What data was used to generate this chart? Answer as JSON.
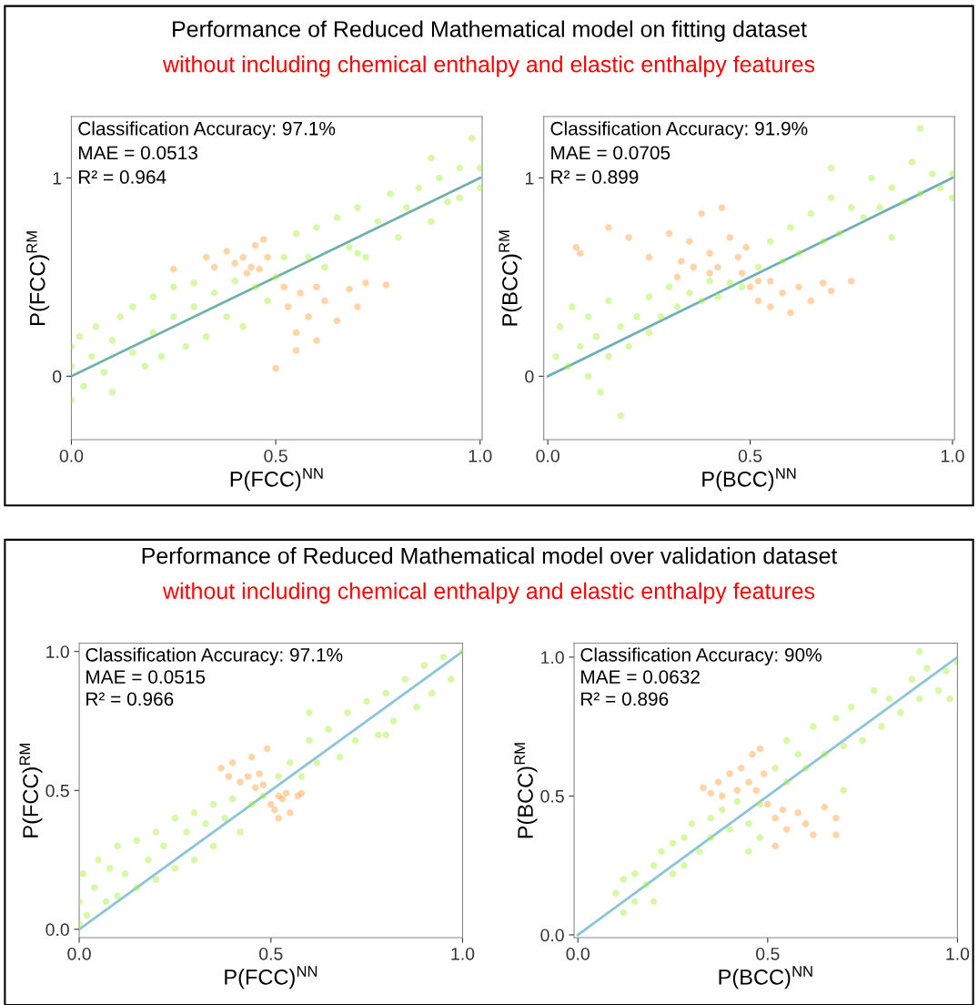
{
  "chart_data": [
    {
      "type": "scatter",
      "title": "Performance of Reduced Mathematical model on fitting dataset",
      "subtitle": "without including chemical enthalpy and elastic enthalpy features",
      "xlabel": "P(FCC)$^{NN}$",
      "ylabel": "P(FCC)$^{RM}$",
      "annotations": [
        "Classification Accuracy: 97.1%",
        "MAE = 0.0513",
        "R² = 0.964"
      ],
      "xlim": [
        0,
        1.005
      ],
      "ylim": [
        -0.32,
        1.31
      ],
      "xticks": [
        {
          "value": 0,
          "label": "0.0"
        },
        {
          "value": 0.5,
          "label": "0.5"
        },
        {
          "value": 1,
          "label": "1.0"
        }
      ],
      "yticks": [
        0,
        1
      ],
      "grid": false,
      "legend": false,
      "marker": "circle",
      "series": [
        {
          "color": "#a6f03c",
          "x": [
            0,
            0,
            0,
            0.02,
            0.03,
            0.05,
            0.06,
            0.08,
            0.1,
            0.1,
            0.12,
            0.15,
            0.15,
            0.18,
            0.2,
            0.2,
            0.22,
            0.25,
            0.25,
            0.28,
            0.3,
            0.3,
            0.33,
            0.35,
            0.38,
            0.4,
            0.42,
            0.45,
            0.48,
            0.5,
            0.52,
            0.55,
            0.58,
            0.6,
            0.62,
            0.65,
            0.68,
            0.7,
            0.72,
            0.75,
            0.78,
            0.8,
            0.82,
            0.85,
            0.88,
            0.9,
            0.92,
            0.95,
            0.95,
            0.98,
            1,
            1,
            0.88,
            0.7
          ],
          "values": [
            0.05,
            -0.12,
            0.15,
            0.2,
            -0.05,
            0.1,
            0.25,
            0.02,
            0.18,
            -0.08,
            0.3,
            0.12,
            0.35,
            0.05,
            0.22,
            0.4,
            0.1,
            0.3,
            0.45,
            0.15,
            0.35,
            0.47,
            0.2,
            0.42,
            0.3,
            0.48,
            0.25,
            0.45,
            0.38,
            0.5,
            0.6,
            0.72,
            0.6,
            0.75,
            0.55,
            0.8,
            0.65,
            0.85,
            0.6,
            0.78,
            0.92,
            0.7,
            0.85,
            0.95,
            0.78,
            1.0,
            0.88,
            1.05,
            0.9,
            1.2,
            1.05,
            0.95,
            1.1,
            0.62
          ]
        },
        {
          "color": "#ffa040",
          "x": [
            0.25,
            0.33,
            0.35,
            0.38,
            0.4,
            0.42,
            0.44,
            0.46,
            0.47,
            0.48,
            0.45,
            0.43,
            0.5,
            0.52,
            0.53,
            0.55,
            0.55,
            0.56,
            0.58,
            0.6,
            0.62,
            0.65,
            0.68,
            0.7,
            0.72,
            0.77,
            0.6
          ],
          "values": [
            0.54,
            0.6,
            0.55,
            0.63,
            0.57,
            0.6,
            0.55,
            0.54,
            0.69,
            0.6,
            0.66,
            0.52,
            0.04,
            0.45,
            0.35,
            0.22,
            0.13,
            0.42,
            0.3,
            0.45,
            0.38,
            0.28,
            0.44,
            0.35,
            0.47,
            0.46,
            0.18
          ]
        },
        {
          "type": "line",
          "marker": "none",
          "color": "#6fb0a8",
          "x": [
            0,
            1
          ],
          "values": [
            0,
            1
          ]
        }
      ]
    },
    {
      "type": "scatter",
      "xlabel": "P(BCC)$^{NN}$",
      "ylabel": "P(BCC)$^{RM}$",
      "annotations": [
        "Classification Accuracy: 91.9%",
        "MAE = 0.0705",
        "R² = 0.899"
      ],
      "xlim": [
        -0.01,
        1.005
      ],
      "ylim": [
        -0.32,
        1.31
      ],
      "xticks": [
        {
          "value": 0,
          "label": "0.0"
        },
        {
          "value": 0.5,
          "label": "0.5"
        },
        {
          "value": 1,
          "label": "1.0"
        }
      ],
      "yticks": [
        0,
        1
      ],
      "grid": false,
      "legend": false,
      "marker": "circle",
      "series": [
        {
          "color": "#a6f03c",
          "x": [
            0.02,
            0.03,
            0.05,
            0.06,
            0.08,
            0.1,
            0.1,
            0.12,
            0.13,
            0.15,
            0.15,
            0.18,
            0.18,
            0.2,
            0.22,
            0.25,
            0.25,
            0.28,
            0.3,
            0.32,
            0.35,
            0.38,
            0.4,
            0.42,
            0.45,
            0.48,
            0.52,
            0.55,
            0.58,
            0.6,
            0.62,
            0.65,
            0.68,
            0.7,
            0.72,
            0.75,
            0.78,
            0.8,
            0.82,
            0.85,
            0.88,
            0.9,
            0.92,
            0.95,
            0.97,
            1,
            1,
            0.92,
            0.7,
            0.85
          ],
          "values": [
            0.1,
            0.25,
            0.05,
            0.35,
            0.15,
            0.3,
            0.0,
            0.2,
            -0.08,
            0.1,
            0.38,
            0.25,
            -0.2,
            0.15,
            0.3,
            0.22,
            0.4,
            0.3,
            0.45,
            0.35,
            0.42,
            0.38,
            0.48,
            0.4,
            0.47,
            0.45,
            0.55,
            0.68,
            0.58,
            0.75,
            0.62,
            0.82,
            0.68,
            0.9,
            0.72,
            0.85,
            0.8,
            1.0,
            0.85,
            0.95,
            0.88,
            1.08,
            0.92,
            1.02,
            0.95,
            1.02,
            0.9,
            1.25,
            1.05,
            0.7
          ]
        },
        {
          "color": "#ffa040",
          "x": [
            0.07,
            0.08,
            0.15,
            0.2,
            0.25,
            0.3,
            0.33,
            0.35,
            0.38,
            0.4,
            0.42,
            0.43,
            0.45,
            0.47,
            0.48,
            0.49,
            0.4,
            0.36,
            0.32,
            0.5,
            0.52,
            0.55,
            0.58,
            0.6,
            0.62,
            0.65,
            0.68,
            0.7,
            0.75,
            0.55,
            0.52
          ],
          "values": [
            0.65,
            0.62,
            0.75,
            0.7,
            0.6,
            0.72,
            0.58,
            0.68,
            0.82,
            0.62,
            0.55,
            0.85,
            0.7,
            0.6,
            0.52,
            0.65,
            0.52,
            0.55,
            0.5,
            0.45,
            0.38,
            0.48,
            0.42,
            0.32,
            0.45,
            0.38,
            0.47,
            0.43,
            0.48,
            0.35,
            0.48
          ]
        },
        {
          "type": "line",
          "marker": "none",
          "color": "#6fb0b8",
          "x": [
            0,
            1
          ],
          "values": [
            0,
            1
          ]
        }
      ]
    },
    {
      "type": "scatter",
      "title": "Performance of Reduced Mathematical model over validation dataset",
      "subtitle": "without including chemical enthalpy and elastic enthalpy features",
      "xlabel": "P(FCC)$^{NN}$",
      "ylabel": "P(FCC)$^{RM}$",
      "annotations": [
        "Classification Accuracy: 97.1%",
        "MAE = 0.0515",
        "R² = 0.966"
      ],
      "xlim": [
        0,
        1
      ],
      "ylim": [
        -0.03,
        1.03
      ],
      "xticks": [
        {
          "value": 0,
          "label": "0.0"
        },
        {
          "value": 0.5,
          "label": "0.5"
        },
        {
          "value": 1,
          "label": "1.0"
        }
      ],
      "yticks": [
        {
          "value": 0,
          "label": "0.0"
        },
        {
          "value": 0.5,
          "label": "0.5"
        },
        {
          "value": 1,
          "label": "1.0"
        }
      ],
      "grid": false,
      "legend": false,
      "marker": "circle",
      "series": [
        {
          "color": "#a6f03c",
          "x": [
            0,
            0,
            0.01,
            0.02,
            0.04,
            0.05,
            0.07,
            0.08,
            0.1,
            0.1,
            0.12,
            0.15,
            0.15,
            0.18,
            0.2,
            0.2,
            0.22,
            0.25,
            0.25,
            0.28,
            0.3,
            0.3,
            0.33,
            0.35,
            0.35,
            0.38,
            0.4,
            0.42,
            0.45,
            0.48,
            0.52,
            0.55,
            0.58,
            0.6,
            0.62,
            0.65,
            0.68,
            0.7,
            0.72,
            0.75,
            0.78,
            0.8,
            0.82,
            0.85,
            0.88,
            0.9,
            0.92,
            0.95,
            0.97,
            1,
            0.6,
            0.8
          ],
          "values": [
            0.02,
            0.1,
            0.2,
            0.05,
            0.15,
            0.25,
            0.1,
            0.22,
            0.3,
            0.12,
            0.2,
            0.32,
            0.15,
            0.25,
            0.35,
            0.18,
            0.3,
            0.4,
            0.22,
            0.35,
            0.42,
            0.25,
            0.38,
            0.45,
            0.3,
            0.4,
            0.47,
            0.35,
            0.45,
            0.48,
            0.55,
            0.6,
            0.55,
            0.68,
            0.6,
            0.72,
            0.62,
            0.78,
            0.68,
            0.82,
            0.7,
            0.85,
            0.75,
            0.9,
            0.8,
            0.95,
            0.85,
            0.98,
            0.9,
            1.0,
            0.78,
            0.7
          ]
        },
        {
          "color": "#ffa040",
          "x": [
            0.37,
            0.39,
            0.4,
            0.42,
            0.45,
            0.47,
            0.48,
            0.49,
            0.46,
            0.44,
            0.5,
            0.51,
            0.52,
            0.53,
            0.54,
            0.55,
            0.57,
            0.58,
            0.52
          ],
          "values": [
            0.58,
            0.55,
            0.6,
            0.53,
            0.62,
            0.56,
            0.52,
            0.65,
            0.51,
            0.55,
            0.45,
            0.43,
            0.48,
            0.47,
            0.49,
            0.42,
            0.48,
            0.49,
            0.4
          ]
        },
        {
          "type": "line",
          "marker": "none",
          "color": "#8cc4d8",
          "x": [
            0,
            1
          ],
          "values": [
            0,
            1
          ]
        }
      ]
    },
    {
      "type": "scatter",
      "xlabel": "P(BCC)$^{NN}$",
      "ylabel": "P(BCC)$^{RM}$",
      "annotations": [
        "Classification Accuracy: 90%",
        "MAE = 0.0632",
        "R² = 0.896"
      ],
      "xlim": [
        -0.01,
        1.0
      ],
      "ylim": [
        -0.01,
        1.05
      ],
      "xticks": [
        {
          "value": 0,
          "label": "0.0"
        },
        {
          "value": 0.5,
          "label": "0.5"
        },
        {
          "value": 1,
          "label": "1.0"
        }
      ],
      "yticks": [
        {
          "value": 0,
          "label": "0.0"
        },
        {
          "value": 0.5,
          "label": "0.5"
        },
        {
          "value": 1,
          "label": "1.0"
        }
      ],
      "grid": false,
      "legend": false,
      "marker": "circle",
      "series": [
        {
          "color": "#a6f03c",
          "x": [
            0.1,
            0.12,
            0.12,
            0.15,
            0.15,
            0.18,
            0.2,
            0.2,
            0.22,
            0.25,
            0.25,
            0.28,
            0.28,
            0.3,
            0.32,
            0.35,
            0.35,
            0.38,
            0.4,
            0.42,
            0.45,
            0.45,
            0.48,
            0.48,
            0.52,
            0.55,
            0.55,
            0.58,
            0.6,
            0.62,
            0.65,
            0.68,
            0.7,
            0.72,
            0.75,
            0.78,
            0.8,
            0.82,
            0.85,
            0.88,
            0.9,
            0.92,
            0.95,
            0.97,
            1,
            0.98,
            0.9,
            0.7
          ],
          "values": [
            0.15,
            0.08,
            0.2,
            0.12,
            0.22,
            0.18,
            0.25,
            0.12,
            0.3,
            0.22,
            0.33,
            0.35,
            0.25,
            0.4,
            0.3,
            0.42,
            0.35,
            0.45,
            0.38,
            0.48,
            0.4,
            0.3,
            0.47,
            0.35,
            0.6,
            0.7,
            0.55,
            0.65,
            0.6,
            0.75,
            0.65,
            0.78,
            0.68,
            0.82,
            0.7,
            0.88,
            0.75,
            0.85,
            0.8,
            0.92,
            0.85,
            0.96,
            0.88,
            0.95,
            0.98,
            0.85,
            1.02,
            0.52
          ]
        },
        {
          "color": "#ffa040",
          "x": [
            0.33,
            0.35,
            0.37,
            0.38,
            0.4,
            0.42,
            0.43,
            0.45,
            0.46,
            0.48,
            0.49,
            0.47,
            0.5,
            0.52,
            0.54,
            0.55,
            0.58,
            0.6,
            0.62,
            0.65,
            0.68,
            0.68,
            0.52
          ],
          "values": [
            0.53,
            0.51,
            0.55,
            0.5,
            0.58,
            0.52,
            0.6,
            0.55,
            0.65,
            0.67,
            0.58,
            0.52,
            0.47,
            0.42,
            0.45,
            0.38,
            0.44,
            0.4,
            0.36,
            0.46,
            0.42,
            0.36,
            0.32
          ]
        },
        {
          "type": "line",
          "marker": "none",
          "color": "#8cc4d8",
          "x": [
            0,
            1
          ],
          "values": [
            0,
            1
          ]
        }
      ]
    }
  ]
}
